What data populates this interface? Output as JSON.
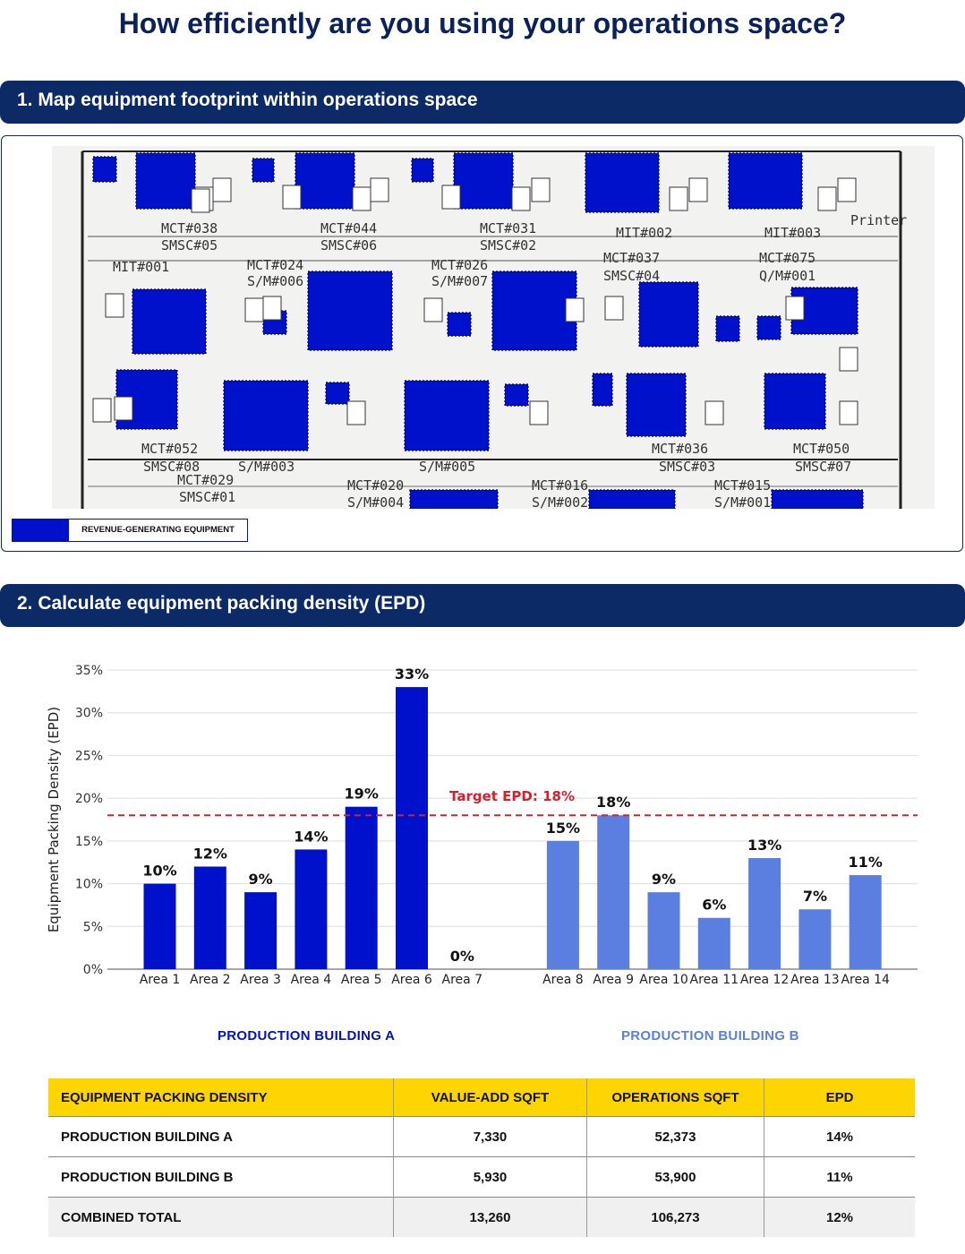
{
  "page": {
    "title": "How efficiently are you using your operations space?",
    "section1_title": "1. Map equipment footprint within operations space",
    "section2_title": "2. Calculate equipment packing density (EPD)",
    "legend_label": "REVENUE-GENERATING EQUIPMENT",
    "building_a_label": "PRODUCTION BUILDING A",
    "building_b_label": "PRODUCTION BUILDING B"
  },
  "floorplan": {
    "labels": [
      "MCT#038",
      "SMSC#05",
      "MCT#044",
      "SMSC#06",
      "MCT#031",
      "SMSC#02",
      "MIT#002",
      "MIT#003",
      "Printer",
      "MIT#001",
      "MCT#024",
      "S/M#006",
      "MCT#026",
      "S/M#007",
      "MCT#037",
      "SMSC#04",
      "MCT#075",
      "Q/M#001",
      "MCT#052",
      "SMSC#08",
      "S/M#003",
      "S/M#005",
      "MCT#036",
      "SMSC#03",
      "MCT#050",
      "SMSC#07",
      "MCT#029",
      "SMSC#01",
      "MCT#020",
      "S/M#004",
      "MCT#016",
      "S/M#002",
      "MCT#015",
      "S/M#001"
    ]
  },
  "colors": {
    "building_a": "#0011cc",
    "building_b": "#5b7fe0",
    "target": "#d62030",
    "header_bg": "#0b2a66",
    "table_header": "#ffd500"
  },
  "chart_data": {
    "type": "bar",
    "ylabel": "Equipment Packing Density (EPD)",
    "ylim": [
      0,
      35
    ],
    "yticks": [
      "0%",
      "5%",
      "10%",
      "15%",
      "20%",
      "25%",
      "30%",
      "35%"
    ],
    "grid": true,
    "target": {
      "label": "Target EPD: 18%",
      "value": 18
    },
    "series": [
      {
        "name": "PRODUCTION BUILDING A",
        "categories": [
          "Area 1",
          "Area 2",
          "Area 3",
          "Area 4",
          "Area 5",
          "Area 6",
          "Area 7"
        ],
        "values": [
          10,
          12,
          9,
          14,
          19,
          33,
          0
        ],
        "labels": [
          "10%",
          "12%",
          "9%",
          "14%",
          "19%",
          "33%",
          "0%"
        ]
      },
      {
        "name": "PRODUCTION BUILDING B",
        "categories": [
          "Area 8",
          "Area 9",
          "Area 10",
          "Area 11",
          "Area 12",
          "Area 13",
          "Area 14"
        ],
        "values": [
          15,
          18,
          9,
          6,
          13,
          7,
          11
        ],
        "labels": [
          "15%",
          "18%",
          "9%",
          "6%",
          "13%",
          "7%",
          "11%"
        ]
      }
    ]
  },
  "table": {
    "headers": [
      "EQUIPMENT PACKING DENSITY",
      "VALUE-ADD SQFT",
      "OPERATIONS SQFT",
      "EPD"
    ],
    "rows": [
      [
        "PRODUCTION BUILDING A",
        "7,330",
        "52,373",
        "14%"
      ],
      [
        "PRODUCTION BUILDING B",
        "5,930",
        "53,900",
        "11%"
      ],
      [
        "COMBINED TOTAL",
        "13,260",
        "106,273",
        "12%"
      ]
    ]
  }
}
